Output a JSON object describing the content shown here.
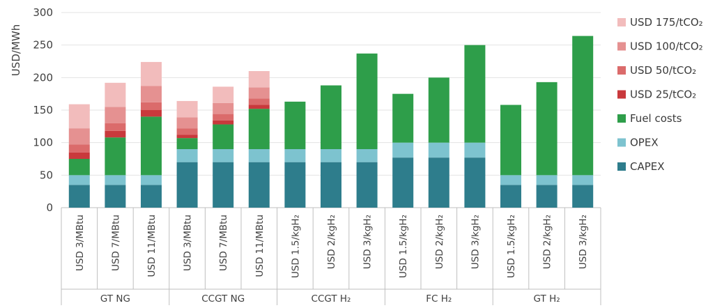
{
  "chart_data": {
    "type": "bar",
    "stacked": true,
    "ylabel": "USD/MWh",
    "ylim": [
      0,
      300
    ],
    "yticks": [
      "0",
      "50",
      "100",
      "150",
      "200",
      "250",
      "300"
    ],
    "grid": true,
    "legend_position": "right",
    "groups": [
      {
        "label": "GT NG",
        "categories": [
          "USD 3/MBtu",
          "USD 7/MBtu",
          "USD 11/MBtu"
        ]
      },
      {
        "label": "CCGT NG",
        "categories": [
          "USD 3/MBtu",
          "USD 7/MBtu",
          "USD 11/MBtu"
        ]
      },
      {
        "label": "CCGT H₂",
        "categories": [
          "USD 1.5/kgH₂",
          "USD 2/kgH₂",
          "USD 3/kgH₂"
        ]
      },
      {
        "label": "FC H₂",
        "categories": [
          "USD 1.5/kgH₂",
          "USD 2/kgH₂",
          "USD 3/kgH₂"
        ]
      },
      {
        "label": "GT H₂",
        "categories": [
          "USD 1.5/kgH₂",
          "USD 2/kgH₂",
          "USD 3/kgH₂"
        ]
      }
    ],
    "series": [
      {
        "name": "CAPEX",
        "color": "#2e7d8c",
        "values": [
          35,
          35,
          35,
          70,
          70,
          70,
          70,
          70,
          70,
          77,
          77,
          77,
          35,
          35,
          35
        ]
      },
      {
        "name": "OPEX",
        "color": "#7dc3cf",
        "values": [
          15,
          15,
          15,
          20,
          20,
          20,
          20,
          20,
          20,
          23,
          23,
          23,
          15,
          15,
          15
        ]
      },
      {
        "name": "Fuel costs",
        "color": "#2e9e4a",
        "values": [
          25,
          58,
          90,
          17,
          38,
          62,
          73,
          98,
          147,
          75,
          100,
          150,
          108,
          143,
          214
        ]
      },
      {
        "name": "USD 25/tCO₂",
        "color": "#c9393c",
        "values": [
          10,
          10,
          10,
          5,
          6,
          6,
          0,
          0,
          0,
          0,
          0,
          0,
          0,
          0,
          0
        ]
      },
      {
        "name": "USD 50/tCO₂",
        "color": "#db6b6b",
        "values": [
          12,
          12,
          12,
          10,
          10,
          10,
          0,
          0,
          0,
          0,
          0,
          0,
          0,
          0,
          0
        ]
      },
      {
        "name": "USD 100/tCO₂",
        "color": "#e59191",
        "values": [
          25,
          25,
          25,
          17,
          17,
          17,
          0,
          0,
          0,
          0,
          0,
          0,
          0,
          0,
          0
        ]
      },
      {
        "name": "USD 175/tCO₂",
        "color": "#f2bcbc",
        "values": [
          37,
          37,
          37,
          25,
          25,
          25,
          0,
          0,
          0,
          0,
          0,
          0,
          0,
          0,
          0
        ]
      }
    ]
  }
}
